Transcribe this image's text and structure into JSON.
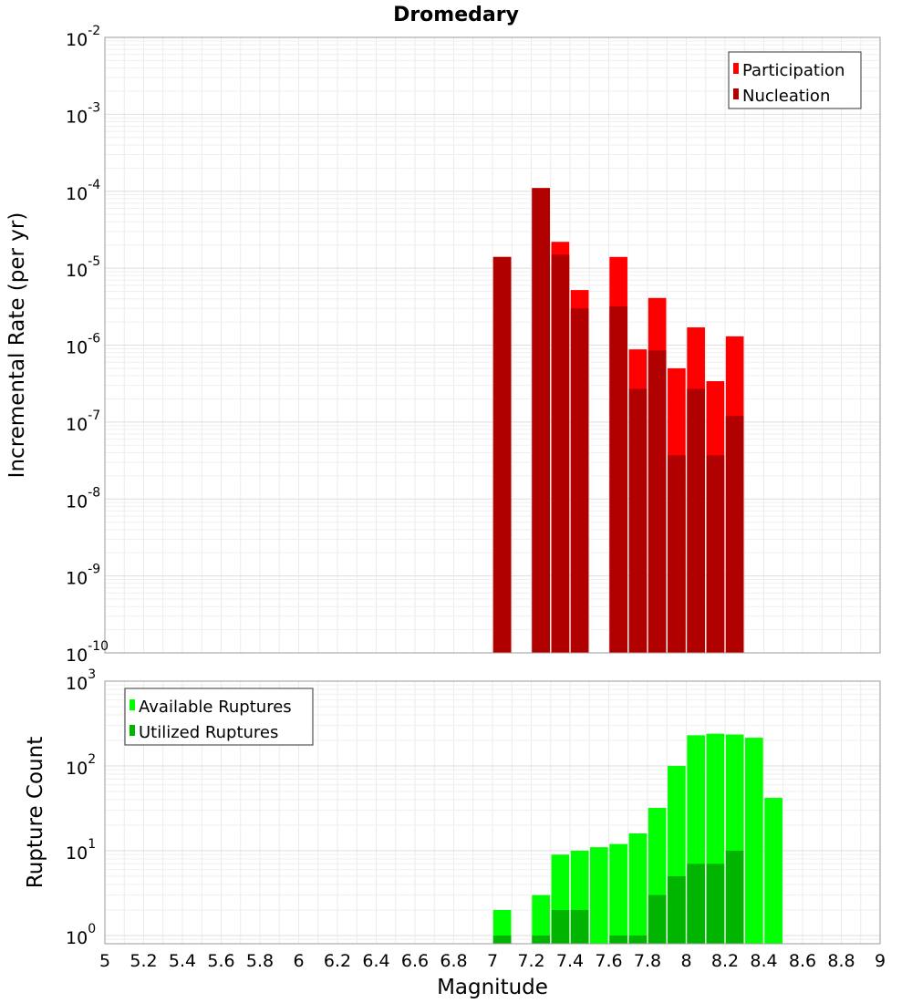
{
  "chart_data": [
    {
      "type": "bar",
      "title": "Dromedary",
      "xlabel": "Magnitude",
      "ylabel": "Incremental Rate (per yr)",
      "yscale": "log",
      "ylim": [
        1e-10,
        0.01
      ],
      "xlim": [
        5,
        9
      ],
      "y_ticks": [
        {
          "base": "10",
          "exp": "-2"
        },
        {
          "base": "10",
          "exp": "-3"
        },
        {
          "base": "10",
          "exp": "-4"
        },
        {
          "base": "10",
          "exp": "-5"
        },
        {
          "base": "10",
          "exp": "-6"
        },
        {
          "base": "10",
          "exp": "-7"
        },
        {
          "base": "10",
          "exp": "-8"
        },
        {
          "base": "10",
          "exp": "-9"
        },
        {
          "base": "10",
          "exp": "-10"
        }
      ],
      "legend_position": "top-right",
      "series": [
        {
          "name": "Participation",
          "color": "#ff0000",
          "x": [
            7.05,
            7.25,
            7.35,
            7.45,
            7.65,
            7.75,
            7.85,
            7.95,
            8.05,
            8.15,
            8.25
          ],
          "values": [
            1.4e-05,
            0.00011,
            2.2e-05,
            5.2e-06,
            1.4e-05,
            8.8e-07,
            4.1e-06,
            5e-07,
            1.7e-06,
            3.4e-07,
            1.3e-06
          ]
        },
        {
          "name": "Nucleation",
          "color": "#b00000",
          "x": [
            7.05,
            7.25,
            7.35,
            7.45,
            7.65,
            7.75,
            7.85,
            7.95,
            8.05,
            8.15,
            8.25
          ],
          "values": [
            1.4e-05,
            0.00011,
            1.5e-05,
            3e-06,
            3.2e-06,
            2.7e-07,
            8.5e-07,
            3.7e-08,
            2.7e-07,
            3.7e-08,
            1.2e-07
          ]
        }
      ]
    },
    {
      "type": "bar",
      "title": "",
      "xlabel": "Magnitude",
      "ylabel": "Rupture Count",
      "yscale": "log",
      "ylim": [
        0.8,
        1000
      ],
      "xlim": [
        5,
        9
      ],
      "y_ticks": [
        {
          "base": "10",
          "exp": "3",
          "value": 1000
        },
        {
          "base": "10",
          "exp": "2",
          "value": 100
        },
        {
          "base": "10",
          "exp": "1",
          "value": 10
        },
        {
          "base": "10",
          "exp": "0",
          "value": 1
        }
      ],
      "x_ticks": [
        "5",
        "5.2",
        "5.4",
        "5.6",
        "5.8",
        "6",
        "6.2",
        "6.4",
        "6.6",
        "6.8",
        "7",
        "7.2",
        "7.4",
        "7.6",
        "7.8",
        "8",
        "8.2",
        "8.4",
        "8.6",
        "8.8",
        "9"
      ],
      "legend_position": "top-left",
      "series": [
        {
          "name": "Available Ruptures",
          "color": "#00ff00",
          "x": [
            7.05,
            7.25,
            7.35,
            7.45,
            7.55,
            7.65,
            7.75,
            7.85,
            7.95,
            8.05,
            8.15,
            8.25,
            8.35,
            8.45
          ],
          "values": [
            2,
            3,
            9,
            10,
            11,
            12,
            16,
            32,
            100,
            230,
            240,
            235,
            215,
            42
          ]
        },
        {
          "name": "Utilized Ruptures",
          "color": "#00b400",
          "x": [
            7.05,
            7.25,
            7.35,
            7.45,
            7.65,
            7.75,
            7.85,
            7.95,
            8.05,
            8.15,
            8.25
          ],
          "values": [
            1,
            1,
            2,
            2,
            1,
            1,
            3,
            5,
            7,
            7,
            10
          ]
        }
      ]
    }
  ]
}
